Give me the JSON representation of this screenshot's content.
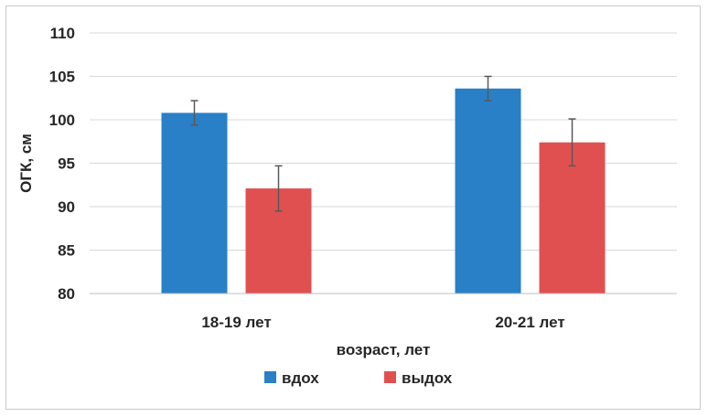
{
  "chart_data": {
    "type": "bar",
    "categories": [
      "18-19 лет",
      "20-21 лет"
    ],
    "series": [
      {
        "name": "вдох",
        "color": "#2980c6",
        "values": [
          100.8,
          103.6
        ],
        "errors": [
          1.4,
          1.4
        ]
      },
      {
        "name": "выдох",
        "color": "#e05050",
        "values": [
          92.1,
          97.4
        ],
        "errors": [
          2.6,
          2.7
        ]
      }
    ],
    "xlabel": "возраст, лет",
    "ylabel": "ОГК, см",
    "ylim": [
      80,
      110
    ],
    "yticks": [
      80,
      85,
      90,
      95,
      100,
      105,
      110
    ],
    "grid": true,
    "legend_position": "bottom"
  }
}
